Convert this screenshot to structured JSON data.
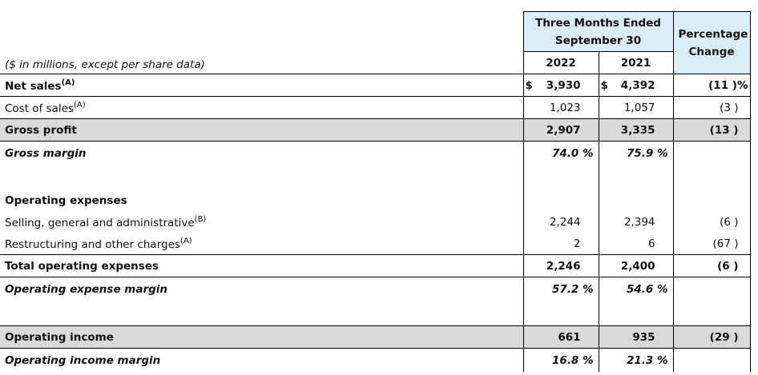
{
  "header": {
    "period": [
      "Three Months Ended",
      "September 30"
    ],
    "change": [
      "Percentage",
      "Change"
    ],
    "units": "($ in millions, except per share data)",
    "years": [
      "2022",
      "2021"
    ]
  },
  "rows": [
    {
      "label": "Net sales",
      "note": "(A)",
      "currency": "$",
      "values": [
        "3,930",
        "4,392"
      ],
      "change": "(11 )%"
    },
    {
      "label": "Cost of sales",
      "note": "(A)",
      "values": [
        "1,023",
        "1,057"
      ],
      "change": "(3 )"
    },
    {
      "label": "Gross profit",
      "values": [
        "2,907",
        "3,335"
      ],
      "change": "(13 )"
    },
    {
      "label": "Gross margin",
      "values": [
        "74.0 %",
        "75.9 %"
      ]
    },
    {
      "label": "Operating expenses"
    },
    {
      "label": "Selling, general and administrative",
      "note": "(B)",
      "values": [
        "2,244",
        "2,394"
      ],
      "change": "(6 )"
    },
    {
      "label": "Restructuring and other charges",
      "note": "(A)",
      "values": [
        "2",
        "6"
      ],
      "change": "(67 )"
    },
    {
      "label": "Total operating expenses",
      "values": [
        "2,246",
        "2,400"
      ],
      "change": "(6 )"
    },
    {
      "label": "Operating expense margin",
      "values": [
        "57.2 %",
        "54.6 %"
      ]
    },
    {
      "label": "Operating income",
      "values": [
        "661",
        "935"
      ],
      "change": "(29 )"
    },
    {
      "label": "Operating income margin",
      "values": [
        "16.8 %",
        "21.3 %"
      ]
    }
  ]
}
